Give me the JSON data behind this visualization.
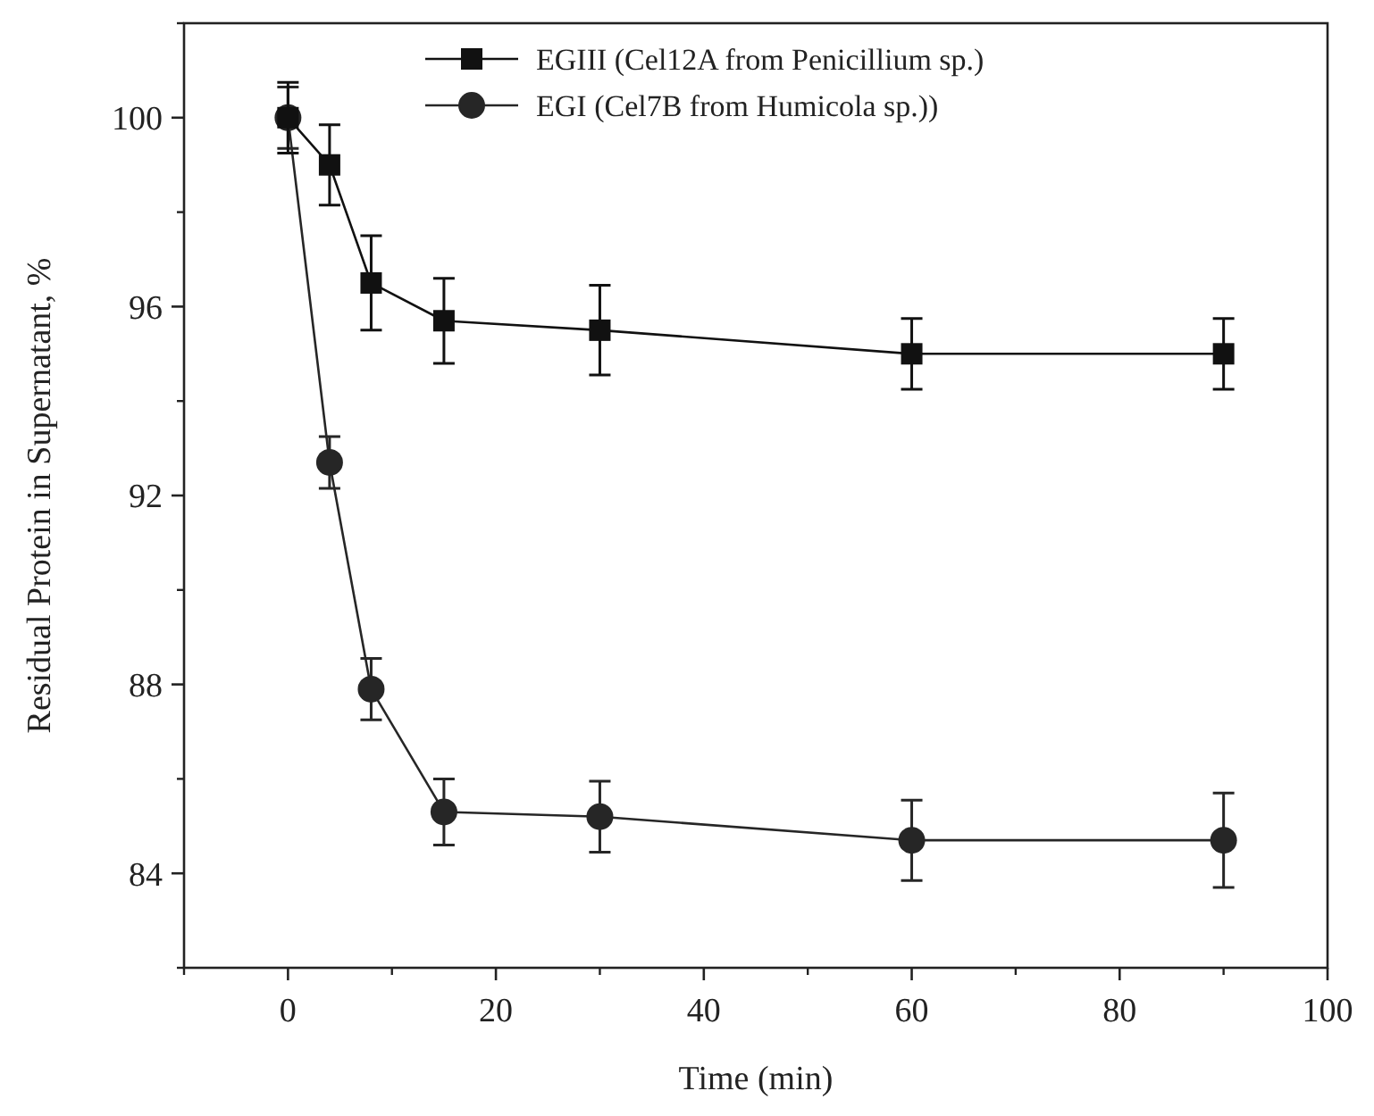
{
  "chart_data": {
    "type": "line",
    "xlabel": "Time (min)",
    "ylabel": "Residual Protein in Supernatant, %",
    "xlim": [
      -10,
      100
    ],
    "xticks": [
      0,
      20,
      40,
      60,
      80,
      100
    ],
    "ylim": [
      82,
      102
    ],
    "yticks": [
      84,
      88,
      92,
      96,
      100
    ],
    "legend": "top right",
    "grid": false,
    "line_style": "solid",
    "series": [
      {
        "name": "EGIII (Cel12A from Penicillium sp.)",
        "color": "#111111",
        "marker": "square",
        "x": [
          0,
          4,
          8,
          15,
          30,
          60,
          90
        ],
        "values": [
          100,
          99.0,
          96.5,
          95.7,
          95.5,
          95.0,
          95.0
        ],
        "errors": [
          0.75,
          0.85,
          1.0,
          0.9,
          0.95,
          0.75,
          0.75
        ]
      },
      {
        "name": "EGI (Cel7B from Humicola sp.))",
        "color": "#262626",
        "marker": "circle",
        "x": [
          0,
          4,
          8,
          15,
          30,
          60,
          90
        ],
        "values": [
          100,
          92.7,
          87.9,
          85.3,
          85.2,
          84.7,
          84.7
        ],
        "errors": [
          0.65,
          0.55,
          0.65,
          0.7,
          0.75,
          0.85,
          1.0
        ]
      }
    ]
  }
}
